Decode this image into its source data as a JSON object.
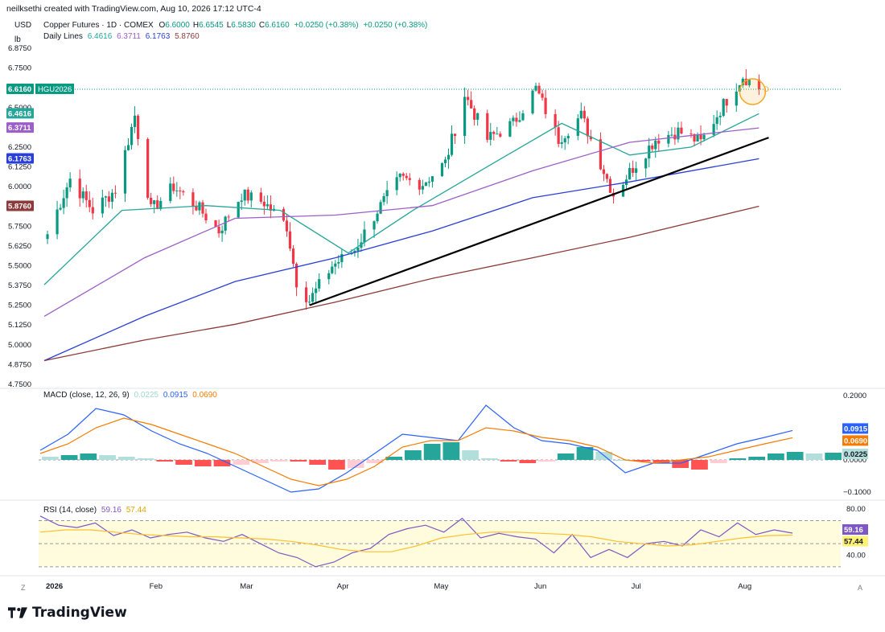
{
  "header": {
    "credit": "neilksethi created with TradingView.com, Aug 10, 2026 17:12 UTC-4"
  },
  "units": {
    "currency": "USD",
    "unit": "lb"
  },
  "instrument": {
    "title": "Copper Futures · 1D · COMEX",
    "ohlc": [
      {
        "k": "O",
        "v": "6.6000"
      },
      {
        "k": "H",
        "v": "6.6545"
      },
      {
        "k": "L",
        "v": "6.5830"
      },
      {
        "k": "C",
        "v": "6.6160"
      }
    ],
    "change": "+0.0250 (+0.38%)",
    "change2": "+0.0250 (+0.38%)",
    "symbol": "HGU2026",
    "last_price": "6.6160"
  },
  "daily_lines": {
    "label": "Daily Lines",
    "values": [
      "6.4616",
      "6.3711",
      "6.1763",
      "5.8760"
    ]
  },
  "macd": {
    "label": "MACD (close, 12, 26, 9)",
    "hist": "0.0225",
    "macd": "0.0915",
    "signal": "0.0690",
    "ticks": [
      "0.2000",
      "0.0000",
      "−0.1000"
    ]
  },
  "rsi": {
    "label": "RSI (14, close)",
    "value": "59.16",
    "ma": "57.44",
    "ticks": [
      "80.00",
      "40.00"
    ]
  },
  "bottom": {
    "left_corner": "Z",
    "right_corner": "A"
  },
  "logo_text": "TradingView",
  "colors": {
    "up": "#089981",
    "down": "#f23645",
    "ma1": "#26a69a",
    "ma2": "#9c5fc7",
    "ma3": "#2a3fd6",
    "ma4": "#8d3a3a",
    "macd": "#2962ff",
    "signal": "#f57c00",
    "rsi": "#7e57c2",
    "rsi_ma": "#fbc02d"
  },
  "chart_data": {
    "type": "candlestick",
    "title": "Copper Futures · 1D · COMEX",
    "x_ticks": [
      "2026",
      "Feb",
      "Mar",
      "Apr",
      "May",
      "Jun",
      "Jul",
      "Aug"
    ],
    "x_tick_dates": [
      "2026-01-01",
      "2026-02-02",
      "2026-03-02",
      "2026-04-01",
      "2026-05-01",
      "2026-06-01",
      "2026-07-01",
      "2026-08-03"
    ],
    "y_ticks": [
      "6.8750",
      "6.7500",
      "6.5000",
      "6.2500",
      "6.1250",
      "6.0000",
      "5.7500",
      "5.6250",
      "5.5000",
      "5.3750",
      "5.2500",
      "5.1250",
      "5.0000",
      "4.8750",
      "4.7500"
    ],
    "ylim": [
      4.75,
      6.875
    ],
    "price_series": [
      {
        "date": "2026-01-02",
        "close": 5.7
      },
      {
        "date": "2026-01-09",
        "close": 6.05
      },
      {
        "date": "2026-01-16",
        "close": 5.85
      },
      {
        "date": "2026-01-23",
        "close": 5.98
      },
      {
        "date": "2026-01-29",
        "close": 6.45
      },
      {
        "date": "2026-02-03",
        "close": 5.85
      },
      {
        "date": "2026-02-10",
        "close": 6.0
      },
      {
        "date": "2026-02-17",
        "close": 5.88
      },
      {
        "date": "2026-02-24",
        "close": 5.72
      },
      {
        "date": "2026-03-03",
        "close": 5.95
      },
      {
        "date": "2026-03-10",
        "close": 5.9
      },
      {
        "date": "2026-03-17",
        "close": 5.75
      },
      {
        "date": "2026-03-20",
        "close": 5.4
      },
      {
        "date": "2026-03-24",
        "close": 5.28
      },
      {
        "date": "2026-03-31",
        "close": 5.5
      },
      {
        "date": "2026-04-07",
        "close": 5.6
      },
      {
        "date": "2026-04-14",
        "close": 5.85
      },
      {
        "date": "2026-04-21",
        "close": 6.05
      },
      {
        "date": "2026-04-28",
        "close": 6.02
      },
      {
        "date": "2026-05-05",
        "close": 6.15
      },
      {
        "date": "2026-05-11",
        "close": 6.58
      },
      {
        "date": "2026-05-18",
        "close": 6.3
      },
      {
        "date": "2026-05-26",
        "close": 6.4
      },
      {
        "date": "2026-06-02",
        "close": 6.62
      },
      {
        "date": "2026-06-09",
        "close": 6.3
      },
      {
        "date": "2026-06-16",
        "close": 6.45
      },
      {
        "date": "2026-06-23",
        "close": 6.1
      },
      {
        "date": "2026-06-26",
        "close": 5.95
      },
      {
        "date": "2026-07-02",
        "close": 6.12
      },
      {
        "date": "2026-07-09",
        "close": 6.3
      },
      {
        "date": "2026-07-16",
        "close": 6.35
      },
      {
        "date": "2026-07-23",
        "close": 6.28
      },
      {
        "date": "2026-07-30",
        "close": 6.52
      },
      {
        "date": "2026-08-05",
        "close": 6.7
      },
      {
        "date": "2026-08-10",
        "close": 6.616
      }
    ],
    "moving_averages": [
      {
        "name": "",
        "last": 6.4616
      },
      {
        "name": "",
        "last": 6.3711
      },
      {
        "name": "",
        "last": 6.1763
      },
      {
        "name": "",
        "last": 5.876
      }
    ],
    "trendline": [
      {
        "date": "2026-03-24",
        "y": 5.25
      },
      {
        "date": "2026-08-13",
        "y": 6.31
      }
    ],
    "macd": {
      "ylim": [
        -0.1,
        0.2
      ],
      "last": {
        "macd": 0.0915,
        "signal": 0.069,
        "hist": 0.0225
      }
    },
    "rsi": {
      "ylim": [
        25,
        85
      ],
      "bands": [
        70,
        50,
        30
      ],
      "last": {
        "rsi": 59.16,
        "ma": 57.44
      }
    }
  }
}
